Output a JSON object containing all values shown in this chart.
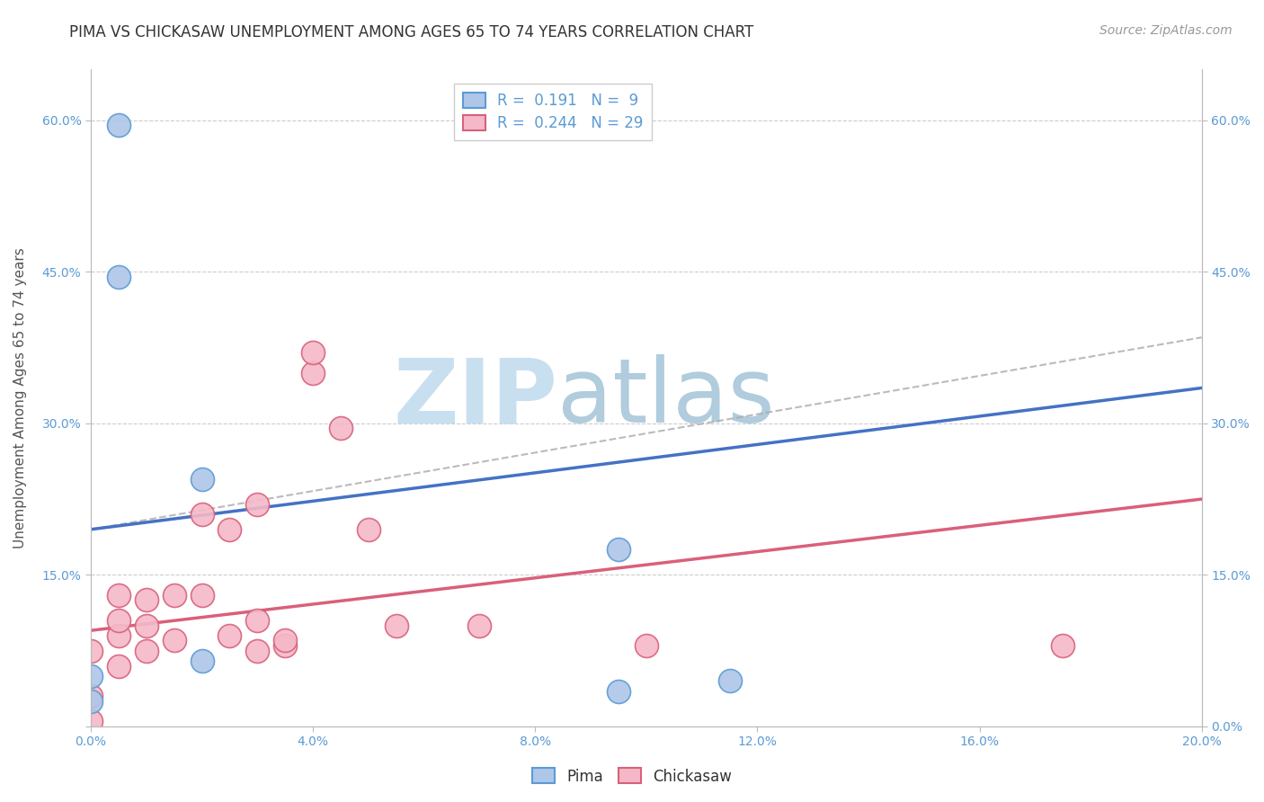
{
  "title": "PIMA VS CHICKASAW UNEMPLOYMENT AMONG AGES 65 TO 74 YEARS CORRELATION CHART",
  "source": "Source: ZipAtlas.com",
  "ylabel": "Unemployment Among Ages 65 to 74 years",
  "xlim": [
    0.0,
    0.2
  ],
  "ylim": [
    0.0,
    0.65
  ],
  "xticks": [
    0.0,
    0.04,
    0.08,
    0.12,
    0.16,
    0.2
  ],
  "yticks": [
    0.0,
    0.15,
    0.3,
    0.45,
    0.6
  ],
  "pima_r": 0.191,
  "pima_n": 9,
  "chickasaw_r": 0.244,
  "chickasaw_n": 29,
  "pima_color": "#aec6e8",
  "pima_edge_color": "#5b9bd5",
  "chickasaw_color": "#f4b8c8",
  "chickasaw_edge_color": "#d9607a",
  "pima_line_color": "#4472c4",
  "chickasaw_line_color": "#d9607a",
  "dashed_line_color": "#aaaaaa",
  "pima_line_x": [
    0.0,
    0.2
  ],
  "pima_line_y": [
    0.195,
    0.335
  ],
  "chickasaw_line_x": [
    0.0,
    0.2
  ],
  "chickasaw_line_y": [
    0.095,
    0.225
  ],
  "dashed_line_x": [
    0.0,
    0.2
  ],
  "dashed_line_y": [
    0.195,
    0.385
  ],
  "pima_points_x": [
    0.005,
    0.005,
    0.02,
    0.02,
    0.095,
    0.115,
    0.0,
    0.0,
    0.095
  ],
  "pima_points_y": [
    0.595,
    0.445,
    0.245,
    0.065,
    0.175,
    0.045,
    0.05,
    0.025,
    0.035
  ],
  "chickasaw_points_x": [
    0.0,
    0.0,
    0.0,
    0.005,
    0.005,
    0.005,
    0.005,
    0.01,
    0.01,
    0.01,
    0.015,
    0.015,
    0.02,
    0.02,
    0.025,
    0.025,
    0.03,
    0.03,
    0.03,
    0.035,
    0.035,
    0.04,
    0.04,
    0.045,
    0.05,
    0.055,
    0.07,
    0.1,
    0.175
  ],
  "chickasaw_points_y": [
    0.005,
    0.03,
    0.075,
    0.06,
    0.09,
    0.105,
    0.13,
    0.075,
    0.1,
    0.125,
    0.085,
    0.13,
    0.13,
    0.21,
    0.09,
    0.195,
    0.105,
    0.075,
    0.22,
    0.08,
    0.085,
    0.35,
    0.37,
    0.295,
    0.195,
    0.1,
    0.1,
    0.08,
    0.08
  ],
  "background_color": "#ffffff",
  "grid_color": "#cccccc",
  "watermark_zip": "ZIP",
  "watermark_atlas": "atlas",
  "watermark_color_zip": "#c8dff0",
  "watermark_color_atlas": "#b0ccdd",
  "title_fontsize": 12,
  "axis_label_fontsize": 11,
  "tick_fontsize": 10,
  "legend_fontsize": 12,
  "source_fontsize": 10
}
